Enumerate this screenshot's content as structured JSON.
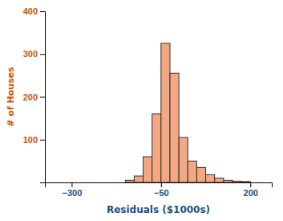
{
  "chart_data": {
    "type": "histogram",
    "xlabel": "Residuals ($1000s)",
    "ylabel": "# of Houses",
    "bins": [
      -150,
      -125,
      -100,
      -75,
      -50,
      -25,
      0,
      25,
      50,
      75,
      100,
      125,
      150,
      175,
      200
    ],
    "values": [
      5,
      15,
      60,
      160,
      325,
      255,
      105,
      50,
      35,
      18,
      10,
      5,
      3,
      2
    ],
    "color": "#F4A882",
    "xlim": [
      -375,
      260
    ],
    "ylim": [
      0,
      400
    ],
    "xticks": [
      {
        "value": -300,
        "label": "−300"
      },
      {
        "value": -50,
        "label": "−50"
      },
      {
        "value": 200,
        "label": "200"
      }
    ],
    "yticks": [
      100,
      200,
      300,
      400
    ],
    "grid": false
  }
}
